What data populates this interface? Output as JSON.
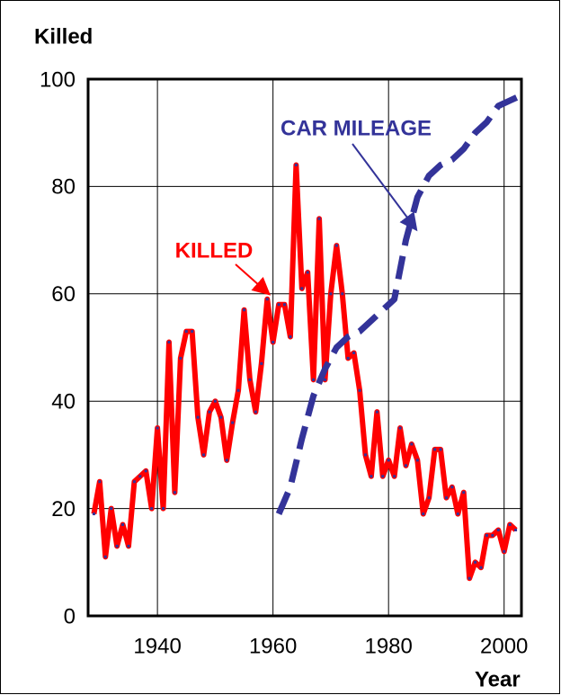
{
  "chart_data": {
    "type": "line",
    "ylabel": "Killed",
    "xlabel": "Year",
    "xlim": [
      1928,
      2003
    ],
    "ylim": [
      0,
      100
    ],
    "xticks": [
      1940,
      1960,
      1980,
      2000
    ],
    "yticks": [
      0,
      20,
      40,
      60,
      80,
      100
    ],
    "grid": true,
    "annotations": [
      {
        "text": "KILLED",
        "color": "#ff0000"
      },
      {
        "text": "CAR MILEAGE",
        "color": "#333399"
      }
    ],
    "series": [
      {
        "name": "KILLED",
        "color": "#ff0000",
        "style": "solid",
        "x": [
          1929,
          1930,
          1931,
          1932,
          1933,
          1934,
          1935,
          1936,
          1937,
          1938,
          1939,
          1940,
          1941,
          1942,
          1943,
          1944,
          1945,
          1946,
          1947,
          1948,
          1949,
          1950,
          1951,
          1952,
          1953,
          1954,
          1955,
          1956,
          1957,
          1958,
          1959,
          1960,
          1961,
          1962,
          1963,
          1964,
          1965,
          1966,
          1967,
          1968,
          1969,
          1970,
          1971,
          1972,
          1973,
          1974,
          1975,
          1976,
          1977,
          1978,
          1979,
          1980,
          1981,
          1982,
          1983,
          1984,
          1985,
          1986,
          1987,
          1988,
          1989,
          1990,
          1991,
          1992,
          1993,
          1994,
          1995,
          1996,
          1997,
          1998,
          1999,
          2000,
          2001,
          2002
        ],
        "values": [
          19,
          25,
          11,
          20,
          13,
          17,
          13,
          25,
          26,
          27,
          20,
          35,
          20,
          51,
          23,
          48,
          53,
          53,
          37,
          30,
          38,
          40,
          37,
          29,
          36,
          42,
          57,
          44,
          38,
          47,
          59,
          51,
          58,
          58,
          52,
          84,
          61,
          64,
          44,
          74,
          44,
          60,
          69,
          60,
          48,
          49,
          42,
          30,
          26,
          38,
          26,
          29,
          26,
          35,
          28,
          32,
          29,
          19,
          22,
          31,
          31,
          22,
          24,
          19,
          23,
          7,
          10,
          9,
          15,
          15,
          16,
          12,
          17,
          16
        ]
      },
      {
        "name": "CAR MILEAGE",
        "color": "#333399",
        "style": "dashed",
        "x": [
          1961,
          1963,
          1965,
          1967,
          1969,
          1971,
          1973,
          1975,
          1977,
          1979,
          1981,
          1983,
          1985,
          1987,
          1989,
          1991,
          1993,
          1995,
          1997,
          1999,
          2001,
          2003
        ],
        "values": [
          19,
          24,
          33,
          41,
          46,
          50,
          52,
          53,
          55,
          57,
          59,
          70,
          78,
          82,
          84,
          85,
          87,
          90,
          92,
          95,
          96,
          97
        ]
      }
    ]
  }
}
